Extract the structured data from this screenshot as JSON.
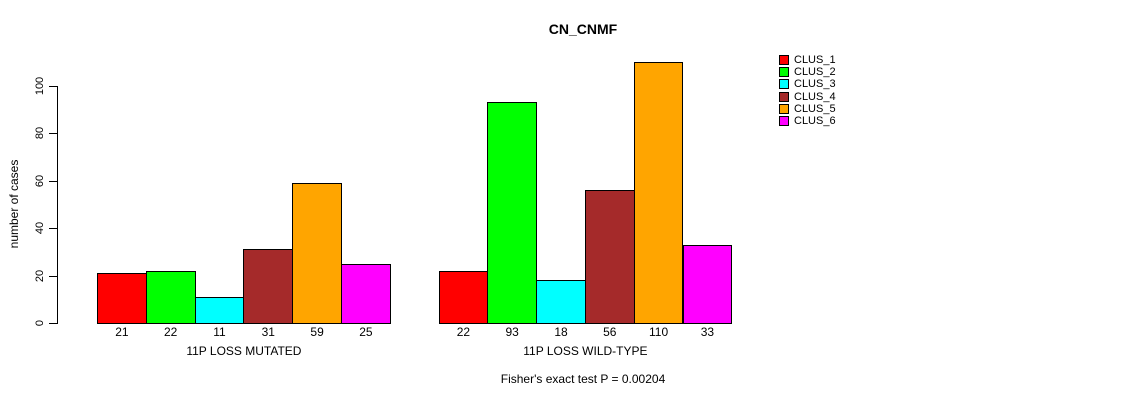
{
  "chart_data": {
    "type": "bar",
    "title": "CN_CNMF",
    "ylabel": "number of cases",
    "xlabel": "",
    "yticks": [
      0,
      20,
      40,
      60,
      80,
      100
    ],
    "ylim": [
      0,
      112
    ],
    "grid": false,
    "legend_position": "right",
    "categories": [
      "11P LOSS MUTATED",
      "11P LOSS WILD-TYPE"
    ],
    "series": [
      {
        "name": "CLUS_1",
        "color": "#FF0000",
        "values": [
          21,
          22
        ]
      },
      {
        "name": "CLUS_2",
        "color": "#00FF00",
        "values": [
          22,
          93
        ]
      },
      {
        "name": "CLUS_3",
        "color": "#00FFFF",
        "values": [
          11,
          18
        ]
      },
      {
        "name": "CLUS_4",
        "color": "#A52A2A",
        "values": [
          31,
          56
        ]
      },
      {
        "name": "CLUS_5",
        "color": "#FFA500",
        "values": [
          59,
          110
        ]
      },
      {
        "name": "CLUS_6",
        "color": "#FF00FF",
        "values": [
          25,
          33
        ]
      }
    ],
    "groups": [
      {
        "label": "11P LOSS MUTATED",
        "values": [
          21,
          22,
          11,
          31,
          59,
          25
        ]
      },
      {
        "label": "11P LOSS WILD-TYPE",
        "values": [
          22,
          93,
          18,
          56,
          110,
          33
        ]
      }
    ],
    "bar_value_labels_shown": true,
    "footnote": "Fisher's exact test P = 0.00204",
    "axis_color": "#000000",
    "bar_border_color": "#000000"
  }
}
